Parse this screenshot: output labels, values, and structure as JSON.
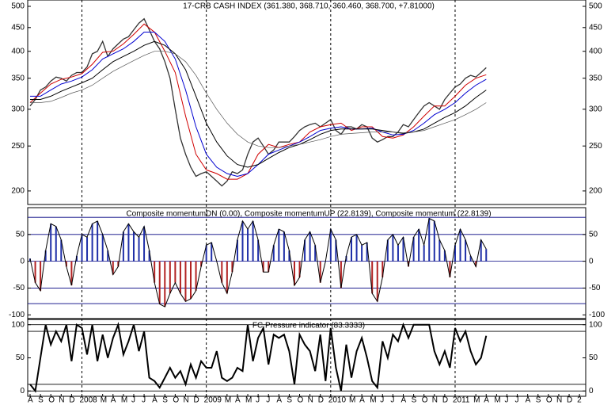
{
  "chart_data": [
    {
      "type": "line",
      "title": "17-CRB CASH INDEX (361.380, 368.710, 360.460, 368.700, +7.81000)",
      "log_scale": true,
      "xlim": [
        -0.23,
        53.6
      ],
      "ylim": [
        187,
        516
      ],
      "yticks": [
        200,
        250,
        300,
        350,
        400,
        450,
        500
      ],
      "vlines": [
        5,
        17,
        29,
        41
      ],
      "series": [
        {
          "name": "close",
          "color": "#333333",
          "width": 1.3,
          "x": [
            0,
            0.5,
            1,
            1.5,
            2,
            2.5,
            3,
            3.5,
            4,
            4.5,
            5,
            5.5,
            6,
            6.5,
            7,
            7.5,
            8,
            8.5,
            9,
            9.5,
            10,
            10.5,
            11,
            11.5,
            12,
            12.5,
            13,
            13.5,
            14,
            14.5,
            15,
            15.5,
            16,
            16.5,
            17,
            17.5,
            18,
            18.5,
            19,
            19.5,
            20,
            20.5,
            21,
            21.5,
            22,
            22.5,
            23,
            23.5,
            24,
            24.5,
            25,
            25.5,
            26,
            26.5,
            27,
            27.5,
            28,
            28.5,
            29,
            29.5,
            30,
            30.5,
            31,
            31.5,
            32,
            32.5,
            33,
            33.5,
            34,
            34.5,
            35,
            35.5,
            36,
            36.5,
            37,
            37.5,
            38,
            38.5,
            39,
            39.5,
            40,
            40.5,
            41,
            41.5,
            42,
            42.5,
            43,
            43.5,
            44
          ],
          "values": [
            305,
            315,
            330,
            335,
            345,
            352,
            350,
            345,
            355,
            360,
            360,
            370,
            395,
            400,
            420,
            390,
            405,
            415,
            425,
            430,
            445,
            460,
            470,
            445,
            420,
            405,
            380,
            350,
            300,
            260,
            240,
            225,
            215,
            218,
            220,
            215,
            210,
            205,
            210,
            220,
            218,
            222,
            240,
            255,
            260,
            250,
            240,
            245,
            255,
            255,
            255,
            262,
            270,
            275,
            278,
            280,
            275,
            280,
            285,
            270,
            265,
            275,
            275,
            272,
            278,
            275,
            260,
            255,
            258,
            262,
            262,
            268,
            278,
            275,
            285,
            295,
            305,
            310,
            305,
            300,
            315,
            325,
            335,
            340,
            350,
            355,
            352,
            360,
            368.7
          ]
        },
        {
          "name": "fast",
          "color": "#d00000",
          "width": 1,
          "x": [
            0,
            1,
            2,
            3,
            4,
            5,
            6,
            7,
            8,
            9,
            10,
            11,
            12,
            13,
            14,
            15,
            16,
            17,
            18,
            19,
            20,
            21,
            22,
            23,
            24,
            25,
            26,
            27,
            28,
            29,
            30,
            31,
            32,
            33,
            34,
            35,
            36,
            37,
            38,
            39,
            40,
            41,
            42,
            43,
            44
          ],
          "values": [
            310,
            325,
            340,
            348,
            352,
            358,
            375,
            398,
            400,
            415,
            435,
            458,
            440,
            400,
            360,
            290,
            240,
            222,
            218,
            212,
            212,
            218,
            240,
            252,
            248,
            252,
            255,
            268,
            275,
            278,
            280,
            270,
            275,
            275,
            262,
            260,
            264,
            275,
            290,
            305,
            305,
            320,
            338,
            350,
            356
          ]
        },
        {
          "name": "medium",
          "color": "#0000d0",
          "width": 1,
          "x": [
            0,
            1,
            2,
            3,
            4,
            5,
            6,
            7,
            8,
            9,
            10,
            11,
            12,
            13,
            14,
            15,
            16,
            17,
            18,
            19,
            20,
            21,
            22,
            23,
            24,
            25,
            26,
            27,
            28,
            29,
            30,
            31,
            32,
            33,
            34,
            35,
            36,
            37,
            38,
            39,
            40,
            41,
            42,
            43,
            44
          ],
          "values": [
            320,
            320,
            330,
            340,
            345,
            352,
            365,
            385,
            395,
            405,
            420,
            440,
            440,
            420,
            385,
            330,
            275,
            240,
            225,
            218,
            215,
            218,
            228,
            240,
            245,
            250,
            255,
            262,
            270,
            273,
            275,
            272,
            272,
            273,
            268,
            264,
            265,
            270,
            280,
            292,
            300,
            310,
            325,
            338,
            348
          ]
        },
        {
          "name": "slow",
          "color": "#000000",
          "width": 1,
          "x": [
            0,
            1,
            2,
            3,
            4,
            5,
            6,
            7,
            8,
            9,
            10,
            11,
            12,
            13,
            14,
            15,
            16,
            17,
            18,
            19,
            20,
            21,
            22,
            23,
            24,
            25,
            26,
            27,
            28,
            29,
            30,
            31,
            32,
            33,
            34,
            35,
            36,
            37,
            38,
            39,
            40,
            41,
            42,
            43,
            44
          ],
          "values": [
            315,
            315,
            320,
            328,
            335,
            342,
            350,
            365,
            380,
            390,
            400,
            412,
            420,
            412,
            395,
            365,
            320,
            280,
            255,
            238,
            228,
            225,
            228,
            235,
            242,
            248,
            252,
            258,
            265,
            270,
            272,
            272,
            272,
            272,
            270,
            268,
            266,
            268,
            272,
            280,
            288,
            295,
            305,
            318,
            330
          ]
        },
        {
          "name": "slowest",
          "color": "#555555",
          "width": 0.7,
          "x": [
            0,
            1,
            2,
            3,
            4,
            5,
            6,
            7,
            8,
            9,
            10,
            11,
            12,
            13,
            14,
            15,
            16,
            17,
            18,
            19,
            20,
            21,
            22,
            23,
            24,
            25,
            26,
            27,
            28,
            29,
            30,
            31,
            32,
            33,
            34,
            35,
            36,
            37,
            38,
            39,
            40,
            41,
            42,
            43,
            44
          ],
          "values": [
            310,
            310,
            312,
            318,
            325,
            330,
            338,
            350,
            362,
            372,
            382,
            392,
            400,
            400,
            395,
            380,
            355,
            325,
            300,
            280,
            265,
            255,
            250,
            248,
            248,
            250,
            252,
            255,
            258,
            262,
            265,
            266,
            267,
            268,
            268,
            268,
            267,
            268,
            270,
            275,
            280,
            285,
            292,
            300,
            310
          ]
        }
      ]
    },
    {
      "type": "histogram_osc",
      "title": "Composite momentumDN (0.00), Composite momentumUP (22.8139), Composite momentum (22.8139)",
      "ylim": [
        -107,
        100
      ],
      "yticks": [
        50,
        0,
        -50,
        -100
      ],
      "hlines": [
        82,
        50,
        0,
        -50,
        -79
      ],
      "hline_color": "#000080",
      "up_color": "#1f2fa8",
      "down_color": "#b22222",
      "x": [
        0,
        0.5,
        1,
        1.5,
        2,
        2.5,
        3,
        3.5,
        4,
        4.5,
        5,
        5.5,
        6,
        6.5,
        7,
        7.5,
        8,
        8.5,
        9,
        9.5,
        10,
        10.5,
        11,
        11.5,
        12,
        12.5,
        13,
        13.5,
        14,
        14.5,
        15,
        15.5,
        16,
        16.5,
        17,
        17.5,
        18,
        18.5,
        19,
        19.5,
        20,
        20.5,
        21,
        21.5,
        22,
        22.5,
        23,
        23.5,
        24,
        24.5,
        25,
        25.5,
        26,
        26.5,
        27,
        27.5,
        28,
        28.5,
        29,
        29.5,
        30,
        30.5,
        31,
        31.5,
        32,
        32.5,
        33,
        33.5,
        34,
        34.5,
        35,
        35.5,
        36,
        36.5,
        37,
        37.5,
        38,
        38.5,
        39,
        39.5,
        40,
        40.5,
        41,
        41.5,
        42,
        42.5,
        43,
        43.5,
        44
      ],
      "values": [
        5,
        -40,
        -55,
        20,
        70,
        65,
        40,
        -10,
        -45,
        10,
        50,
        45,
        70,
        75,
        50,
        20,
        -25,
        -10,
        55,
        70,
        55,
        45,
        65,
        20,
        -40,
        -80,
        -85,
        -60,
        -40,
        -60,
        -75,
        -70,
        -55,
        -10,
        30,
        35,
        0,
        -40,
        -60,
        -20,
        40,
        75,
        60,
        75,
        40,
        -20,
        -20,
        30,
        60,
        55,
        20,
        -45,
        -30,
        40,
        55,
        30,
        -40,
        0,
        60,
        40,
        -50,
        10,
        45,
        50,
        30,
        35,
        -60,
        -75,
        -30,
        40,
        50,
        30,
        45,
        -10,
        45,
        60,
        30,
        80,
        75,
        40,
        20,
        -30,
        30,
        60,
        40,
        10,
        -10,
        40,
        22.8
      ]
    },
    {
      "type": "line",
      "title": "FC Pressure indicator (83.3333)",
      "ylim": [
        -8,
        108
      ],
      "yticks": [
        100,
        50,
        0
      ],
      "hlines": [
        100,
        90,
        10,
        0
      ],
      "hline_color": "#000000",
      "color": "#000000",
      "xticks": [
        {
          "value": 0,
          "label": "A"
        },
        {
          "value": 1,
          "label": "S"
        },
        {
          "value": 2,
          "label": "O"
        },
        {
          "value": 3,
          "label": "N"
        },
        {
          "value": 4,
          "label": "D"
        },
        {
          "value": 5,
          "label": "2008"
        },
        {
          "value": 7,
          "label": "M"
        },
        {
          "value": 8,
          "label": "A"
        },
        {
          "value": 9,
          "label": "M"
        },
        {
          "value": 10,
          "label": "J"
        },
        {
          "value": 11,
          "label": "J"
        },
        {
          "value": 12,
          "label": "A"
        },
        {
          "value": 13,
          "label": "S"
        },
        {
          "value": 14,
          "label": "O"
        },
        {
          "value": 15,
          "label": "N"
        },
        {
          "value": 16,
          "label": "D"
        },
        {
          "value": 17,
          "label": "2009"
        },
        {
          "value": 19,
          "label": "M"
        },
        {
          "value": 20,
          "label": "A"
        },
        {
          "value": 21,
          "label": "M"
        },
        {
          "value": 22,
          "label": "J"
        },
        {
          "value": 23,
          "label": "J"
        },
        {
          "value": 24,
          "label": "A"
        },
        {
          "value": 25,
          "label": "S"
        },
        {
          "value": 26,
          "label": "O"
        },
        {
          "value": 27,
          "label": "N"
        },
        {
          "value": 28,
          "label": "D"
        },
        {
          "value": 29,
          "label": "2010"
        },
        {
          "value": 31,
          "label": "M"
        },
        {
          "value": 32,
          "label": "A"
        },
        {
          "value": 33,
          "label": "M"
        },
        {
          "value": 34,
          "label": "J"
        },
        {
          "value": 35,
          "label": "J"
        },
        {
          "value": 36,
          "label": "A"
        },
        {
          "value": 37,
          "label": "S"
        },
        {
          "value": 38,
          "label": "O"
        },
        {
          "value": 39,
          "label": "N"
        },
        {
          "value": 40,
          "label": "D"
        },
        {
          "value": 41,
          "label": "2011"
        },
        {
          "value": 43,
          "label": "M"
        },
        {
          "value": 44,
          "label": "A"
        },
        {
          "value": 45,
          "label": "M"
        },
        {
          "value": 46,
          "label": "J"
        },
        {
          "value": 47,
          "label": "J"
        },
        {
          "value": 48,
          "label": "A"
        },
        {
          "value": 49,
          "label": "S"
        },
        {
          "value": 50,
          "label": "O"
        },
        {
          "value": 51,
          "label": "N"
        },
        {
          "value": 52,
          "label": "D"
        },
        {
          "value": 53,
          "label": "2"
        }
      ],
      "x": [
        0,
        0.5,
        1,
        1.5,
        2,
        2.5,
        3,
        3.5,
        4,
        4.5,
        5,
        5.5,
        6,
        6.5,
        7,
        7.5,
        8,
        8.5,
        9,
        9.5,
        10,
        10.5,
        11,
        11.5,
        12,
        12.5,
        13,
        13.5,
        14,
        14.5,
        15,
        15.5,
        16,
        16.5,
        17,
        17.5,
        18,
        18.5,
        19,
        19.5,
        20,
        20.5,
        21,
        21.5,
        22,
        22.5,
        23,
        23.5,
        24,
        24.5,
        25,
        25.5,
        26,
        26.5,
        27,
        27.5,
        28,
        28.5,
        29,
        29.5,
        30,
        30.5,
        31,
        31.5,
        32,
        32.5,
        33,
        33.5,
        34,
        34.5,
        35,
        35.5,
        36,
        36.5,
        37,
        37.5,
        38,
        38.5,
        39,
        39.5,
        40,
        40.5,
        41,
        41.5,
        42,
        42.5,
        43,
        43.5,
        44
      ],
      "values": [
        10,
        0,
        50,
        100,
        70,
        90,
        75,
        100,
        45,
        100,
        95,
        55,
        100,
        45,
        85,
        50,
        80,
        100,
        55,
        75,
        100,
        60,
        90,
        20,
        15,
        5,
        20,
        35,
        20,
        30,
        10,
        40,
        20,
        45,
        35,
        35,
        60,
        20,
        15,
        20,
        35,
        30,
        100,
        45,
        80,
        95,
        40,
        85,
        80,
        85,
        60,
        10,
        85,
        70,
        60,
        30,
        85,
        15,
        95,
        35,
        0,
        70,
        20,
        60,
        80,
        50,
        15,
        5,
        75,
        50,
        85,
        75,
        100,
        80,
        100,
        100,
        100,
        100,
        60,
        40,
        60,
        35,
        95,
        75,
        90,
        60,
        40,
        50,
        83.3
      ]
    }
  ]
}
